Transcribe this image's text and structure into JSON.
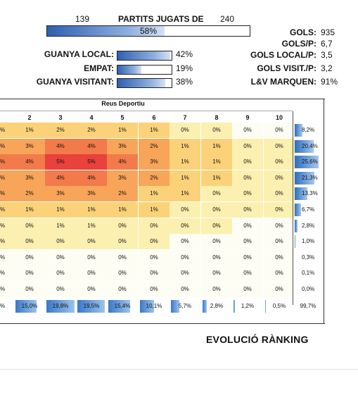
{
  "header": {
    "played": "139",
    "title": "PARTITS JUGATS DE",
    "total": "240",
    "played_pct": "58%",
    "played_fraction": 0.58
  },
  "outcomes": [
    {
      "label": "GUANYA LOCAL:",
      "pct": "42%",
      "fraction": 0.42
    },
    {
      "label": "EMPAT:",
      "pct": "19%",
      "fraction": 0.19
    },
    {
      "label": "GUANYA VISITANT:",
      "pct": "38%",
      "fraction": 0.38
    }
  ],
  "stats": [
    {
      "label": "GOLS:",
      "value": "935"
    },
    {
      "label": "GOLS/P:",
      "value": "6,7"
    },
    {
      "label": "GOLS LOCAL/P:",
      "value": "3,5"
    },
    {
      "label": "GOLS VISIT./P:",
      "value": "3,2"
    },
    {
      "label": "L&V MARQUEN:",
      "value": "91%"
    }
  ],
  "grid": {
    "team": "Reus Deportiu",
    "columns": [
      "2",
      "3",
      "4",
      "5",
      "6",
      "7",
      "8",
      "9",
      "10"
    ],
    "left_col_marks": [
      "%",
      "%",
      "%",
      "%",
      "%",
      "%",
      "%",
      "%",
      "%",
      "%",
      "%",
      "%"
    ],
    "rows": [
      [
        "1%",
        "2%",
        "2%",
        "1%",
        "1%",
        "0%",
        "0%",
        "0%",
        "0%"
      ],
      [
        "3%",
        "4%",
        "4%",
        "3%",
        "2%",
        "1%",
        "1%",
        "0%",
        "0%"
      ],
      [
        "4%",
        "5%",
        "5%",
        "4%",
        "3%",
        "1%",
        "1%",
        "0%",
        "0%"
      ],
      [
        "3%",
        "4%",
        "4%",
        "3%",
        "2%",
        "1%",
        "1%",
        "0%",
        "0%"
      ],
      [
        "2%",
        "3%",
        "3%",
        "2%",
        "1%",
        "1%",
        "0%",
        "0%",
        "0%"
      ],
      [
        "1%",
        "1%",
        "1%",
        "1%",
        "1%",
        "0%",
        "0%",
        "0%",
        "0%"
      ],
      [
        "0%",
        "1%",
        "1%",
        "0%",
        "0%",
        "0%",
        "0%",
        "0%",
        "0%"
      ],
      [
        "0%",
        "0%",
        "0%",
        "0%",
        "0%",
        "0%",
        "0%",
        "0%",
        "0%"
      ],
      [
        "0%",
        "0%",
        "0%",
        "0%",
        "0%",
        "0%",
        "0%",
        "0%",
        "0%"
      ],
      [
        "0%",
        "0%",
        "0%",
        "0%",
        "0%",
        "0%",
        "0%",
        "0%",
        "0%"
      ],
      [
        "0%",
        "0%",
        "0%",
        "0%",
        "0%",
        "0%",
        "0%",
        "0%",
        "0%"
      ]
    ],
    "heat": [
      [
        2,
        2,
        2,
        2,
        2,
        1,
        1,
        0,
        0
      ],
      [
        3,
        4,
        4,
        3,
        3,
        2,
        2,
        1,
        1
      ],
      [
        4,
        5,
        5,
        4,
        3,
        2,
        2,
        1,
        1
      ],
      [
        3,
        4,
        4,
        3,
        3,
        2,
        2,
        1,
        1
      ],
      [
        3,
        3,
        3,
        3,
        2,
        2,
        1,
        1,
        1
      ],
      [
        2,
        2,
        2,
        2,
        2,
        1,
        1,
        1,
        1
      ],
      [
        1,
        1,
        1,
        1,
        1,
        1,
        1,
        0,
        0
      ],
      [
        1,
        1,
        1,
        1,
        1,
        0,
        0,
        0,
        0
      ],
      [
        0,
        0,
        0,
        0,
        0,
        0,
        0,
        0,
        0
      ],
      [
        0,
        0,
        0,
        0,
        0,
        0,
        0,
        0,
        0
      ],
      [
        0,
        0,
        0,
        0,
        0,
        0,
        0,
        0,
        0
      ]
    ],
    "row_totals": [
      "8,2%",
      "20,4%",
      "25,6%",
      "21,3%",
      "13,3%",
      "6,7%",
      "2,8%",
      "1,0%",
      "0,3%",
      "0,1%",
      "0,0%"
    ],
    "row_total_fractions": [
      0.082,
      0.204,
      0.256,
      0.213,
      0.133,
      0.067,
      0.028,
      0.01,
      0.003,
      0.001,
      0.0
    ],
    "col_totals": [
      "15,0%",
      "19,8%",
      "19,5%",
      "15,4%",
      "10,1%",
      "5,7%",
      "2,8%",
      "1,2%",
      "0,5%"
    ],
    "col_total_fractions": [
      0.15,
      0.198,
      0.195,
      0.154,
      0.101,
      0.057,
      0.028,
      0.012,
      0.005
    ],
    "grand_total": "99,7%"
  },
  "heat_colors": [
    "#fdfdf3",
    "#fbf0b0",
    "#fbd27a",
    "#f8a55a",
    "#f37a4a",
    "#e9413b"
  ],
  "section_title": "EVOLUCIÓ RÀNKING"
}
